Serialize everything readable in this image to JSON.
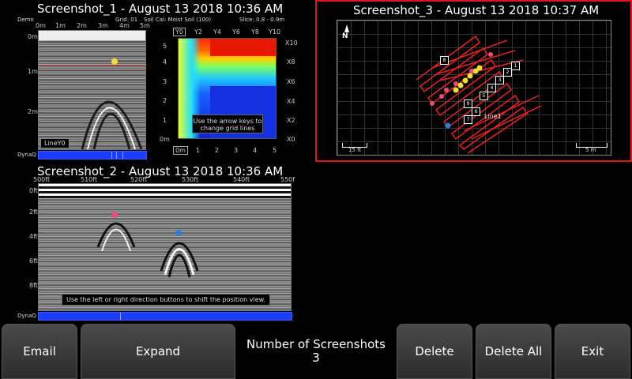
{
  "screenshot1": {
    "title": "Screenshot_1 - August 13 2018 10:36 AM",
    "mode": "Demo",
    "grid": "Grid: 01",
    "soil": "Soil Cal: Moist Soil (100)",
    "slice": "Slice: 0.8 - 0.9m",
    "x_ticks": [
      "0m",
      "1m",
      "2m",
      "3m",
      "4m",
      "5m"
    ],
    "depth_ticks": [
      "0m",
      "1m",
      "2m"
    ],
    "line_label": "LineY0",
    "dynaq": "DynaQ",
    "map_top_ticks": [
      "Y0",
      "Y2",
      "Y4",
      "Y6",
      "Y8",
      "Y10"
    ],
    "map_left_ticks": [
      "5",
      "4",
      "3",
      "2",
      "1",
      "0m"
    ],
    "map_right_ticks": [
      "X10",
      "X8",
      "X6",
      "X4",
      "X2",
      "X0"
    ],
    "map_bottom_ticks": [
      "0m",
      "1",
      "2",
      "3",
      "4",
      "5"
    ],
    "map_hint": "Use the arrow keys to change grid lines"
  },
  "screenshot2": {
    "title": "Screenshot_2 - August 13 2018 10:36 AM",
    "x_ticks": [
      "500ft",
      "510ft",
      "520ft",
      "530ft",
      "540ft",
      "550f"
    ],
    "depth_ticks": [
      "0ft",
      "2ft",
      "4ft",
      "6ft",
      "8ft"
    ],
    "hint": "Use the left or right direction buttons to shift the position view.",
    "dynaq": "DynaQ"
  },
  "screenshot3": {
    "title": "Screenshot_3 - August 13 2018 10:37 AM",
    "north": "N",
    "scale_ft": "15 ft",
    "scale_m": "5 m",
    "line_label": "Line1",
    "flags": [
      "8",
      "9",
      "1",
      "2",
      "3",
      "4",
      "5",
      "6",
      "7"
    ],
    "highlight_color": "#e0141e"
  },
  "buttons": {
    "email": "Email",
    "expand": "Expand",
    "delete": "Delete",
    "delete_all": "Delete All",
    "exit": "Exit"
  },
  "count": {
    "label": "Number of Screenshots",
    "value": "3"
  }
}
